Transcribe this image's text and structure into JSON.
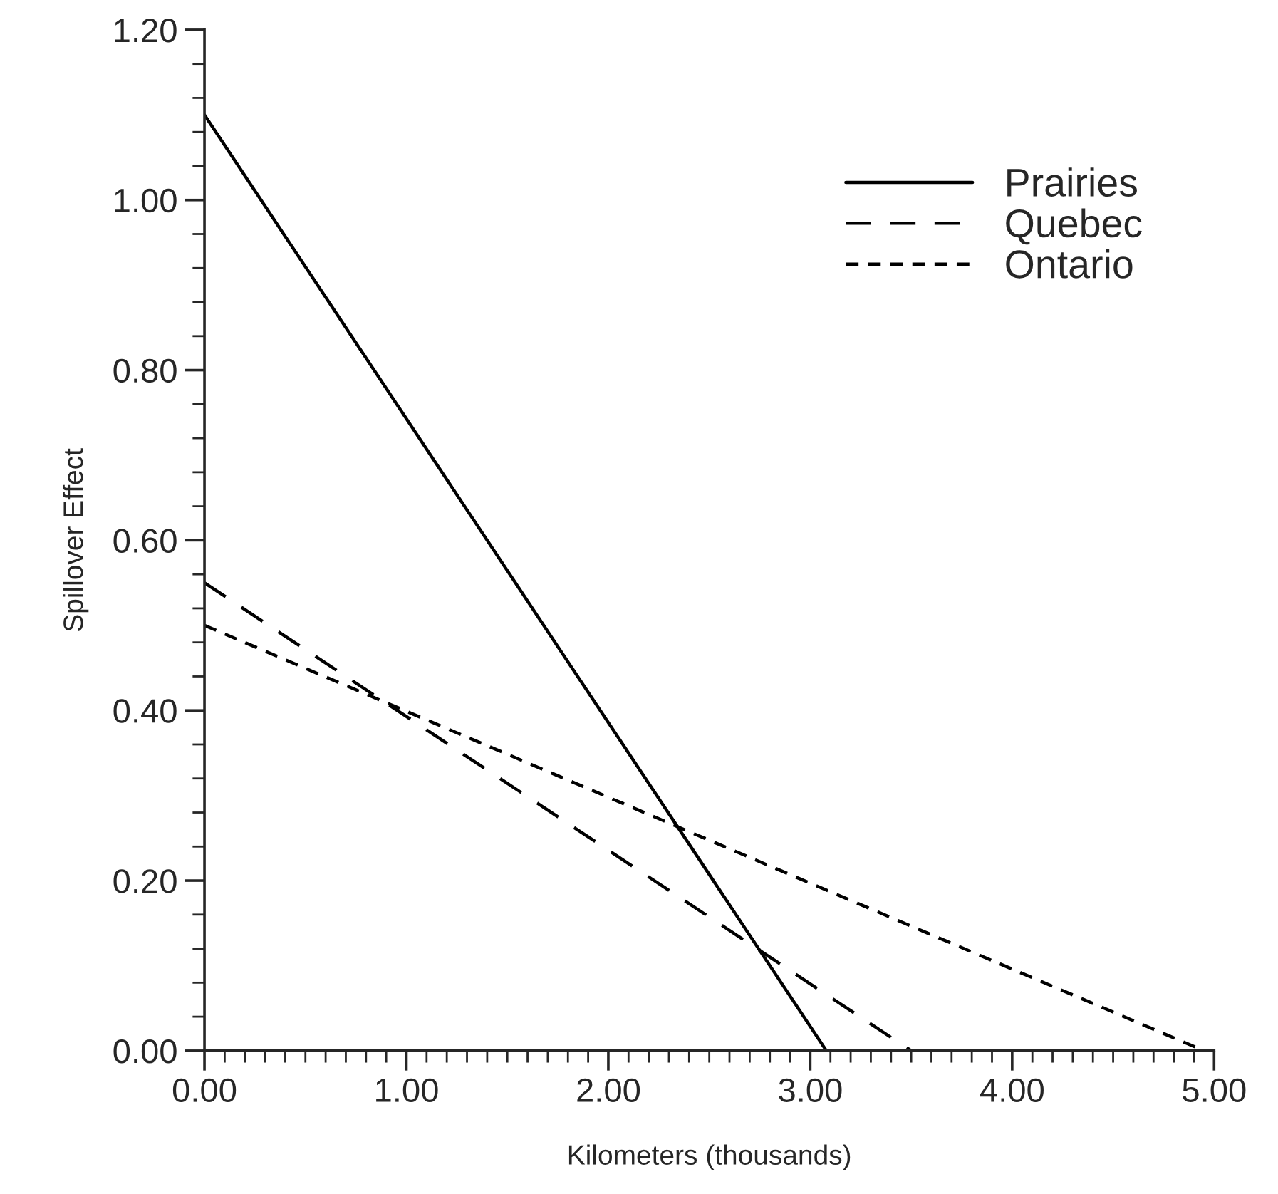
{
  "chart_data": {
    "type": "line",
    "xlabel": "Kilometers (thousands)",
    "ylabel": "Spillover Effect",
    "xlim": [
      0,
      5
    ],
    "ylim": [
      0,
      1.2
    ],
    "xticks": [
      {
        "value": 0,
        "label": "0.00"
      },
      {
        "value": 1,
        "label": "1.00"
      },
      {
        "value": 2,
        "label": "2.00"
      },
      {
        "value": 3,
        "label": "3.00"
      },
      {
        "value": 4,
        "label": "4.00"
      },
      {
        "value": 5,
        "label": "5.00"
      }
    ],
    "yticks": [
      {
        "value": 0,
        "label": "0.00"
      },
      {
        "value": 0.2,
        "label": "0.20"
      },
      {
        "value": 0.4,
        "label": "0.40"
      },
      {
        "value": 0.6,
        "label": "0.60"
      },
      {
        "value": 0.8,
        "label": "0.80"
      },
      {
        "value": 1.0,
        "label": "1.00"
      },
      {
        "value": 1.2,
        "label": "1.20"
      }
    ],
    "grid": false,
    "legend": "top right",
    "series": [
      {
        "name": "Prairies",
        "color": "#000000",
        "line_style": "solid",
        "x": [
          0,
          3.08
        ],
        "values": [
          1.1,
          0
        ]
      },
      {
        "name": "Quebec",
        "color": "#000000",
        "line_style": "dashed",
        "x": [
          0,
          3.5
        ],
        "values": [
          0.55,
          0
        ]
      },
      {
        "name": "Ontario",
        "color": "#000000",
        "line_style": "dotted",
        "x": [
          0,
          4.95
        ],
        "values": [
          0.5,
          0
        ]
      }
    ]
  }
}
